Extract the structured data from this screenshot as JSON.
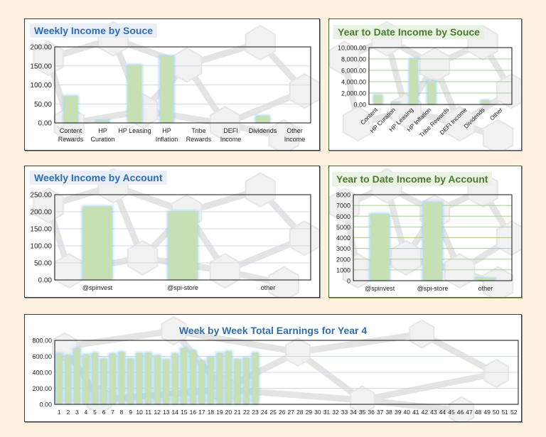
{
  "chart_data": [
    {
      "id": "weekly-source",
      "type": "bar",
      "title": "Weekly Income by Souce",
      "categories": [
        "Content Rewards",
        "HP Curation",
        "HP Leasing",
        "HP Inflation",
        "Tribe Rewards",
        "DEFI Income",
        "Dividends",
        "Other Income"
      ],
      "values": [
        70,
        6,
        152,
        175,
        0,
        0,
        18,
        0
      ],
      "ylim": [
        0,
        200
      ],
      "yticks": [
        "0.00",
        "50.00",
        "100.00",
        "150.00",
        "200.00"
      ],
      "grid": true,
      "legend": "none"
    },
    {
      "id": "ytd-source",
      "type": "bar",
      "title": "Year to Date Income by Souce",
      "categories": [
        "Content",
        "HP Curation",
        "HP Leasing",
        "HP Inflation",
        "Tribe Rewards",
        "DEFI Income",
        "Dividends",
        "Other"
      ],
      "values": [
        1600,
        300,
        8000,
        4100,
        0,
        0,
        700,
        0
      ],
      "ylim": [
        0,
        10000
      ],
      "yticks": [
        "0.00",
        "2,000.00",
        "4,000.00",
        "6,000.00",
        "8,000.00",
        "10,000.00"
      ],
      "grid": true,
      "legend": "none"
    },
    {
      "id": "weekly-account",
      "type": "bar",
      "title": "Weekly Income by Account",
      "categories": [
        "@spinvest",
        "@spi-store",
        "other"
      ],
      "values": [
        215,
        200,
        0
      ],
      "ylim": [
        0,
        250
      ],
      "yticks": [
        "0.00",
        "50.00",
        "100.00",
        "150.00",
        "200.00",
        "250.00"
      ],
      "grid": true,
      "legend": "none"
    },
    {
      "id": "ytd-account",
      "type": "bar",
      "title": "Year to Date Income by Account",
      "categories": [
        "@spinvest",
        "@spi-store",
        "other"
      ],
      "values": [
        6200,
        7300,
        200
      ],
      "ylim": [
        0,
        8000
      ],
      "yticks": [
        "0",
        "1000",
        "2000",
        "3000",
        "4000",
        "5000",
        "6000",
        "7000",
        "8000"
      ],
      "grid": true,
      "legend": "none"
    },
    {
      "id": "week-by-week",
      "type": "bar",
      "title": "Week by Week Total Earnings for Year 4",
      "categories": [
        "1",
        "2",
        "3",
        "4",
        "5",
        "6",
        "7",
        "8",
        "9",
        "10",
        "11",
        "12",
        "13",
        "14",
        "15",
        "16",
        "17",
        "18",
        "19",
        "20",
        "21",
        "22",
        "23",
        "24",
        "25",
        "26",
        "27",
        "28",
        "29",
        "30",
        "31",
        "32",
        "33",
        "34",
        "35",
        "36",
        "37",
        "38",
        "39",
        "40",
        "41",
        "42",
        "43",
        "44",
        "45",
        "46",
        "47",
        "48",
        "49",
        "50",
        "51",
        "52"
      ],
      "values": [
        630,
        610,
        700,
        620,
        640,
        570,
        630,
        650,
        570,
        640,
        640,
        610,
        560,
        630,
        700,
        670,
        540,
        590,
        640,
        660,
        560,
        580,
        640,
        0,
        0,
        0,
        0,
        0,
        0,
        0,
        0,
        0,
        0,
        0,
        0,
        0,
        0,
        0,
        0,
        0,
        0,
        0,
        0,
        0,
        0,
        0,
        0,
        0,
        0,
        0,
        0,
        0
      ],
      "ylim": [
        0,
        800
      ],
      "yticks": [
        "0.00",
        "200.00",
        "400.00",
        "600.00",
        "800.00"
      ],
      "grid": true,
      "legend": "none"
    }
  ],
  "colors": {
    "bar_fill": "#c6e0b4",
    "bar_glow": "#9fd0f2",
    "grid_blue": "#c9ddf0",
    "grid_green": "#a9d18e",
    "title_blue": "#2e6db4",
    "title_green": "#4a7c2f"
  }
}
